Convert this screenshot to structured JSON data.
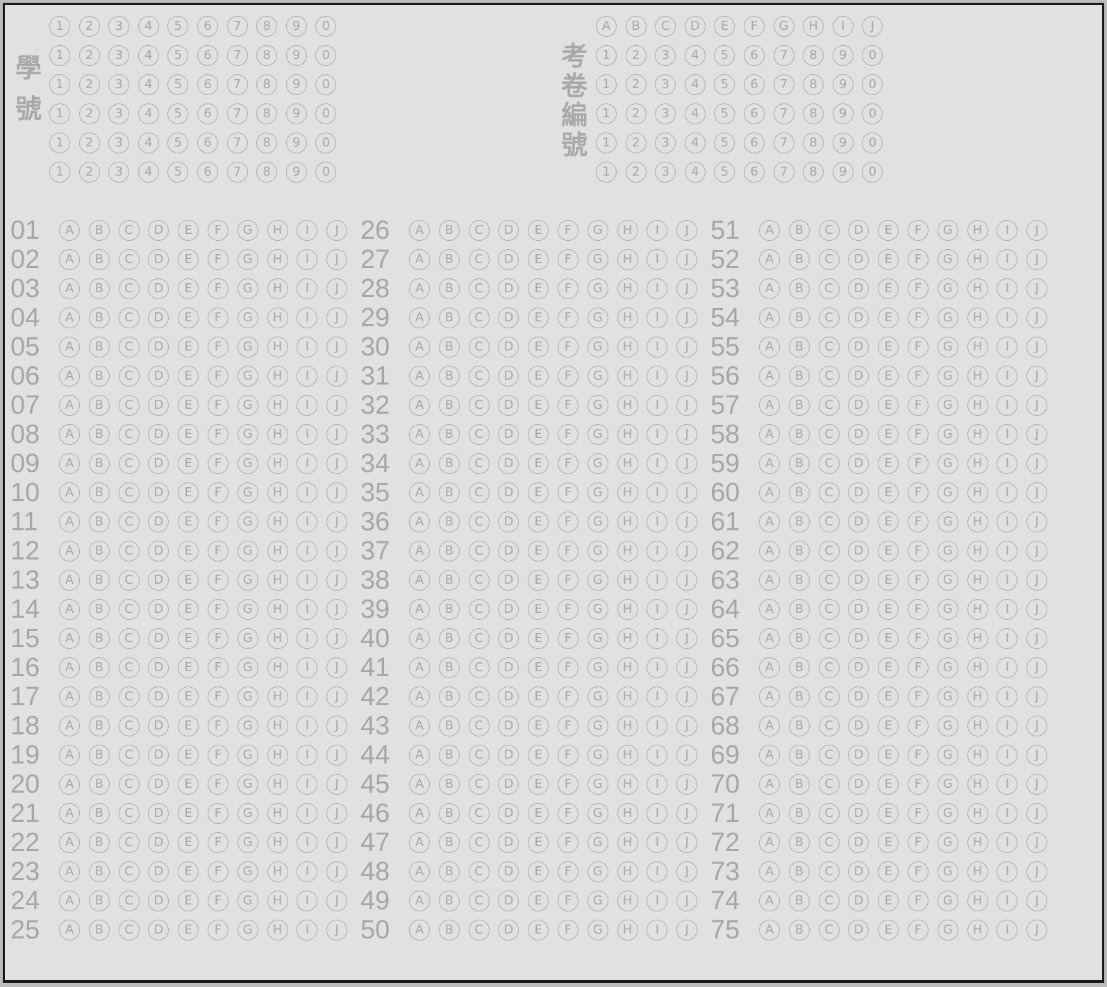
{
  "student_id": {
    "label_chars": [
      "學",
      "號"
    ],
    "digit_labels": [
      "1",
      "2",
      "3",
      "4",
      "5",
      "6",
      "7",
      "8",
      "9",
      "0"
    ],
    "row_count": 6,
    "filled": []
  },
  "exam_number": {
    "label_chars": [
      "考",
      "卷",
      "編",
      "號"
    ],
    "letter_labels": [
      "A",
      "B",
      "C",
      "D",
      "E",
      "F",
      "G",
      "H",
      "I",
      "J"
    ],
    "digit_labels": [
      "1",
      "2",
      "3",
      "4",
      "5",
      "6",
      "7",
      "8",
      "9",
      "0"
    ],
    "digit_row_count": 5,
    "filled": []
  },
  "answers": {
    "option_labels": [
      "A",
      "B",
      "C",
      "D",
      "E",
      "F",
      "G",
      "H",
      "I",
      "J"
    ],
    "columns": [
      [
        "01",
        "02",
        "03",
        "04",
        "05",
        "06",
        "07",
        "08",
        "09",
        "10",
        "11",
        "12",
        "13",
        "14",
        "15",
        "16",
        "17",
        "18",
        "19",
        "20",
        "21",
        "22",
        "23",
        "24",
        "25"
      ],
      [
        "26",
        "27",
        "28",
        "29",
        "30",
        "31",
        "32",
        "33",
        "34",
        "35",
        "36",
        "37",
        "38",
        "39",
        "40",
        "41",
        "42",
        "43",
        "44",
        "45",
        "46",
        "47",
        "48",
        "49",
        "50"
      ],
      [
        "51",
        "52",
        "53",
        "54",
        "55",
        "56",
        "57",
        "58",
        "59",
        "60",
        "61",
        "62",
        "63",
        "64",
        "65",
        "66",
        "67",
        "68",
        "69",
        "70",
        "71",
        "72",
        "73",
        "74",
        "75"
      ]
    ],
    "filled": []
  },
  "colors": {
    "paper": "#e1e1e1",
    "ink": "#a7a7a7",
    "border": "#1a1a1a"
  }
}
